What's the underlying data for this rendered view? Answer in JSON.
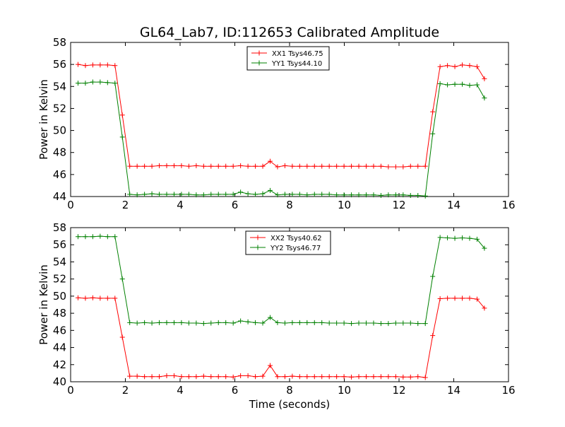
{
  "chart_data": [
    {
      "type": "line",
      "title": "GL64_Lab7, ID:112653 Calibrated Amplitude",
      "xlabel": "",
      "ylabel": "Power in Kelvin",
      "xlim": [
        0,
        16
      ],
      "ylim": [
        44,
        58
      ],
      "xticks": [
        0,
        2,
        4,
        6,
        8,
        10,
        12,
        14,
        16
      ],
      "yticks": [
        44,
        46,
        48,
        50,
        52,
        54,
        56,
        58
      ],
      "grid": false,
      "legend_position": "top-center",
      "x": [
        0.27,
        0.54,
        0.81,
        1.08,
        1.35,
        1.62,
        1.89,
        2.16,
        2.43,
        2.7,
        2.97,
        3.24,
        3.51,
        3.78,
        4.05,
        4.32,
        4.59,
        4.86,
        5.13,
        5.4,
        5.67,
        5.94,
        6.21,
        6.48,
        6.75,
        7.02,
        7.29,
        7.56,
        7.83,
        8.1,
        8.37,
        8.64,
        8.91,
        9.18,
        9.45,
        9.72,
        9.99,
        10.26,
        10.53,
        10.8,
        11.07,
        11.34,
        11.61,
        11.88,
        12.15,
        12.42,
        12.69,
        12.96,
        13.23,
        13.5,
        13.77,
        14.04,
        14.31,
        14.58,
        14.85,
        15.12
      ],
      "series": [
        {
          "name": "XX1 Tsys46.75",
          "color": "#ff0000",
          "values": [
            56.0,
            55.9,
            55.95,
            55.95,
            55.95,
            55.9,
            51.4,
            46.75,
            46.75,
            46.75,
            46.75,
            46.8,
            46.8,
            46.8,
            46.8,
            46.75,
            46.8,
            46.75,
            46.75,
            46.75,
            46.75,
            46.75,
            46.8,
            46.75,
            46.75,
            46.75,
            47.2,
            46.7,
            46.8,
            46.75,
            46.75,
            46.75,
            46.75,
            46.75,
            46.75,
            46.75,
            46.75,
            46.75,
            46.75,
            46.75,
            46.75,
            46.75,
            46.7,
            46.7,
            46.7,
            46.75,
            46.75,
            46.75,
            51.7,
            55.8,
            55.9,
            55.8,
            55.95,
            55.9,
            55.8,
            54.7
          ]
        },
        {
          "name": "YY1 Tsys44.10",
          "color": "#008000",
          "values": [
            54.3,
            54.3,
            54.4,
            54.4,
            54.35,
            54.3,
            49.4,
            44.2,
            44.15,
            44.2,
            44.25,
            44.2,
            44.2,
            44.2,
            44.2,
            44.2,
            44.15,
            44.15,
            44.2,
            44.2,
            44.2,
            44.2,
            44.4,
            44.25,
            44.2,
            44.25,
            44.55,
            44.15,
            44.2,
            44.2,
            44.2,
            44.15,
            44.2,
            44.2,
            44.2,
            44.15,
            44.15,
            44.15,
            44.15,
            44.15,
            44.15,
            44.1,
            44.15,
            44.15,
            44.15,
            44.1,
            44.1,
            44.05,
            49.7,
            54.25,
            54.15,
            54.2,
            54.2,
            54.1,
            54.15,
            52.95
          ]
        }
      ]
    },
    {
      "type": "line",
      "title": "",
      "xlabel": "Time (seconds)",
      "ylabel": "Power in Kelvin",
      "xlim": [
        0,
        16
      ],
      "ylim": [
        40,
        58
      ],
      "xticks": [
        0,
        2,
        4,
        6,
        8,
        10,
        12,
        14,
        16
      ],
      "yticks": [
        40,
        42,
        44,
        46,
        48,
        50,
        52,
        54,
        56,
        58
      ],
      "grid": false,
      "legend_position": "top-center",
      "x": [
        0.27,
        0.54,
        0.81,
        1.08,
        1.35,
        1.62,
        1.89,
        2.16,
        2.43,
        2.7,
        2.97,
        3.24,
        3.51,
        3.78,
        4.05,
        4.32,
        4.59,
        4.86,
        5.13,
        5.4,
        5.67,
        5.94,
        6.21,
        6.48,
        6.75,
        7.02,
        7.29,
        7.56,
        7.83,
        8.1,
        8.37,
        8.64,
        8.91,
        9.18,
        9.45,
        9.72,
        9.99,
        10.26,
        10.53,
        10.8,
        11.07,
        11.34,
        11.61,
        11.88,
        12.15,
        12.42,
        12.69,
        12.96,
        13.23,
        13.5,
        13.77,
        14.04,
        14.31,
        14.58,
        14.85,
        15.12
      ],
      "series": [
        {
          "name": "XX2 Tsys40.62",
          "color": "#ff0000",
          "values": [
            49.8,
            49.75,
            49.8,
            49.75,
            49.75,
            49.75,
            45.2,
            40.65,
            40.65,
            40.6,
            40.6,
            40.6,
            40.7,
            40.7,
            40.6,
            40.6,
            40.6,
            40.65,
            40.6,
            40.6,
            40.6,
            40.55,
            40.7,
            40.7,
            40.6,
            40.65,
            41.9,
            40.6,
            40.6,
            40.65,
            40.6,
            40.6,
            40.6,
            40.6,
            40.6,
            40.6,
            40.6,
            40.55,
            40.6,
            40.6,
            40.6,
            40.6,
            40.6,
            40.6,
            40.55,
            40.55,
            40.6,
            40.5,
            45.4,
            49.7,
            49.75,
            49.75,
            49.75,
            49.75,
            49.65,
            48.6
          ]
        },
        {
          "name": "YY2 Tsys46.77",
          "color": "#008000",
          "values": [
            56.95,
            56.95,
            56.95,
            57.0,
            56.95,
            56.95,
            52.0,
            46.9,
            46.85,
            46.9,
            46.85,
            46.9,
            46.9,
            46.9,
            46.9,
            46.85,
            46.85,
            46.8,
            46.85,
            46.9,
            46.9,
            46.85,
            47.1,
            47.0,
            46.9,
            46.85,
            47.5,
            46.9,
            46.85,
            46.9,
            46.9,
            46.9,
            46.9,
            46.9,
            46.85,
            46.85,
            46.85,
            46.8,
            46.85,
            46.85,
            46.85,
            46.8,
            46.8,
            46.85,
            46.85,
            46.85,
            46.8,
            46.8,
            52.3,
            56.85,
            56.8,
            56.75,
            56.8,
            56.75,
            56.65,
            55.6
          ]
        }
      ]
    }
  ]
}
